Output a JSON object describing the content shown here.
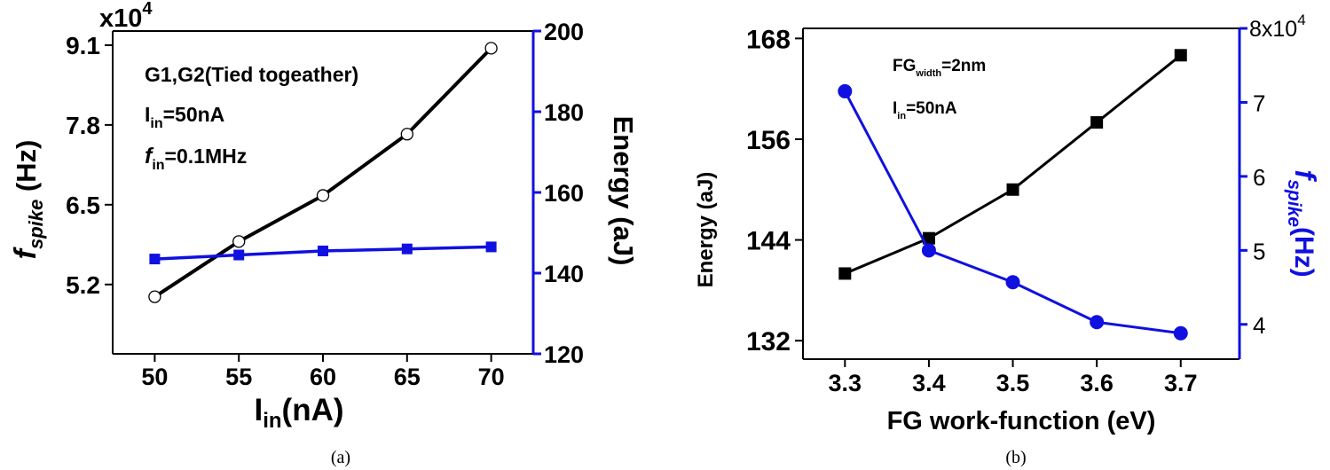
{
  "chart_data": [
    {
      "panel_label": "(a)",
      "type": "line",
      "multiplier_label": "x10",
      "multiplier_exp": "4",
      "xlabel_main": "I",
      "xlabel_sub": "in",
      "xlabel_tail": "(nA)",
      "left_ylabel_italic": "f",
      "left_ylabel_sub": "spike",
      "left_ylabel_tail": " (Hz)",
      "right_ylabel": "Energy (aJ)",
      "x_ticks": [
        "50",
        "55",
        "60",
        "65",
        "70"
      ],
      "left_ticks": [
        "5.2",
        "6.5",
        "7.8",
        "9.1"
      ],
      "right_ticks": [
        "120",
        "140",
        "160",
        "180",
        "200"
      ],
      "xlim": [
        47.5,
        72.5
      ],
      "left_ylim": [
        4.07,
        9.33
      ],
      "right_ylim": [
        120,
        200
      ],
      "annotations": [
        {
          "main": "G1,G2(Tied togeather)",
          "sub": "",
          "tail": "",
          "italic_first": false
        },
        {
          "main": "I",
          "sub": "in",
          "tail": "=50nA",
          "italic_first": false
        },
        {
          "main": "f",
          "sub": "in",
          "tail": "=0.1MHz",
          "italic_first": true
        }
      ],
      "series": [
        {
          "axis": "left",
          "marker": "open-circle",
          "color": "#000000",
          "x": [
            50,
            55,
            60,
            65,
            70
          ],
          "values": [
            5.0,
            5.9,
            6.65,
            7.65,
            9.05
          ]
        },
        {
          "axis": "right",
          "marker": "square",
          "color": "#1010e0",
          "x": [
            50,
            55,
            60,
            65,
            70
          ],
          "values": [
            143.5,
            144.5,
            145.5,
            146,
            146.5
          ]
        }
      ]
    },
    {
      "panel_label": "(b)",
      "type": "line",
      "xlabel": "FG work-function (eV)",
      "left_ylabel": "Energy (aJ)",
      "right_ylabel_italic": "f",
      "right_ylabel_sub": "spike",
      "right_ylabel_tail": "(Hz)",
      "right_top_tick": "8x10",
      "right_top_exp": "4",
      "x_ticks": [
        "3.3",
        "3.4",
        "3.5",
        "3.6",
        "3.7"
      ],
      "left_ticks": [
        "132",
        "144",
        "156",
        "168"
      ],
      "right_ticks": [
        "4",
        "5",
        "6",
        "7"
      ],
      "xlim": [
        3.25,
        3.77
      ],
      "left_ylim": [
        129.8,
        169.2
      ],
      "right_ylim": [
        3.53,
        8.0
      ],
      "annotations": [
        {
          "main": "FG",
          "sub": "width",
          "tail": "=2nm"
        },
        {
          "main": "I",
          "sub": "in",
          "tail": "=50nA"
        }
      ],
      "series": [
        {
          "axis": "left",
          "marker": "square",
          "color": "#000000",
          "x": [
            3.3,
            3.4,
            3.5,
            3.6,
            3.7
          ],
          "values": [
            140,
            144.2,
            150,
            158,
            166
          ]
        },
        {
          "axis": "right",
          "marker": "filled-circle",
          "color": "#1010e0",
          "x": [
            3.3,
            3.4,
            3.5,
            3.6,
            3.7
          ],
          "values": [
            7.15,
            5.0,
            4.57,
            4.03,
            3.88
          ]
        }
      ]
    }
  ]
}
